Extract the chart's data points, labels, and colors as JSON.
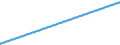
{
  "values": [
    0,
    1,
    2,
    2,
    3,
    4,
    5,
    5,
    6,
    7,
    8,
    8,
    9,
    10,
    11,
    11,
    12,
    13,
    14,
    14,
    15,
    16,
    17,
    18,
    18,
    19,
    20,
    21,
    21,
    22,
    23,
    24,
    24,
    25,
    26,
    27,
    28,
    28,
    29,
    30,
    31,
    31,
    32,
    33,
    34,
    34,
    35,
    36,
    37,
    38,
    38,
    39,
    40,
    41,
    41,
    42,
    43,
    44,
    44,
    45,
    46,
    47,
    48,
    48,
    49,
    50,
    51,
    51,
    52,
    53,
    54,
    54,
    55,
    56,
    57,
    58,
    58,
    59,
    60,
    61,
    61,
    62,
    63,
    64,
    64,
    65,
    66,
    67,
    68,
    68,
    69,
    70,
    71,
    71,
    72,
    73,
    74,
    74,
    75,
    76
  ],
  "line_color": "#4aa3df",
  "linewidth": 1.5,
  "background_color": "#ffffff",
  "ylim_min": -2,
  "ylim_max": 80
}
